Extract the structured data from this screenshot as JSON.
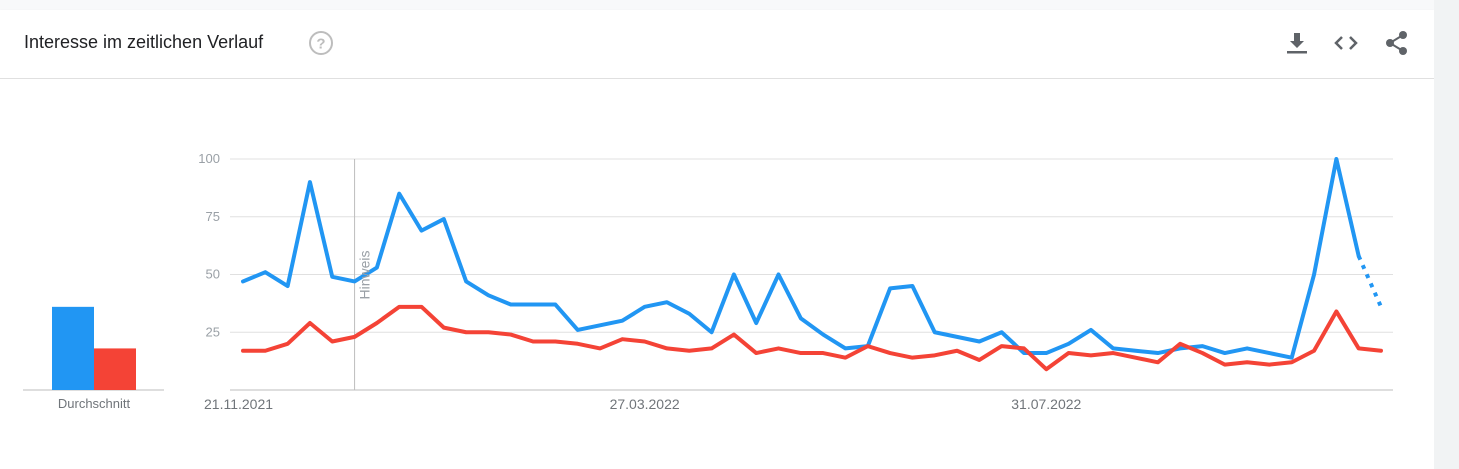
{
  "header": {
    "title": "Interesse im zeitlichen Verlauf",
    "icons": [
      "help-icon",
      "download-icon",
      "embed-icon",
      "share-icon"
    ]
  },
  "chart_data": {
    "type": "line",
    "ylim": [
      0,
      100
    ],
    "y_ticks": [
      25,
      50,
      75,
      100
    ],
    "y_tick_labels": [
      "25",
      "50",
      "75",
      "100"
    ],
    "x_tick_labels": [
      "21.11.2021",
      "27.03.2022",
      "31.07.2022"
    ],
    "x_tick_indices": [
      0,
      18,
      36
    ],
    "annotation": {
      "label": "Hinweis",
      "index": 5
    },
    "average_label": "Durchschnitt",
    "grid": true,
    "series": [
      {
        "color": "#2196f3",
        "average": 36,
        "partial_from_index": 50,
        "values": [
          47,
          51,
          45,
          90,
          49,
          47,
          53,
          85,
          69,
          74,
          47,
          41,
          37,
          37,
          37,
          26,
          28,
          30,
          36,
          38,
          33,
          25,
          50,
          29,
          50,
          31,
          24,
          18,
          19,
          44,
          45,
          25,
          23,
          21,
          25,
          16,
          16,
          20,
          26,
          18,
          17,
          16,
          18,
          19,
          16,
          18,
          16,
          14,
          50,
          100,
          58,
          36
        ]
      },
      {
        "color": "#f44336",
        "average": 18,
        "values": [
          17,
          17,
          20,
          29,
          21,
          23,
          29,
          36,
          36,
          27,
          25,
          25,
          24,
          21,
          21,
          20,
          18,
          22,
          21,
          18,
          17,
          18,
          24,
          16,
          18,
          16,
          16,
          14,
          19,
          16,
          14,
          15,
          17,
          13,
          19,
          18,
          9,
          16,
          15,
          16,
          14,
          12,
          20,
          16,
          11,
          12,
          11,
          12,
          17,
          34,
          18,
          17
        ]
      }
    ]
  }
}
